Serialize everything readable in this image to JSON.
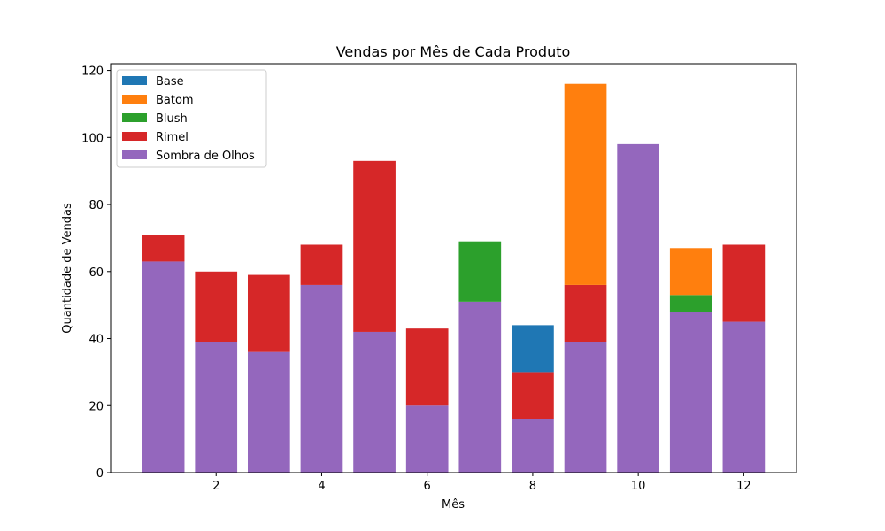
{
  "chart_data": {
    "type": "bar",
    "stacked": true,
    "title": "Vendas por Mês de Cada Produto",
    "xlabel": "Mês",
    "ylabel": "Quantidade de Vendas",
    "x": [
      1,
      2,
      3,
      4,
      5,
      6,
      7,
      8,
      9,
      10,
      11,
      12
    ],
    "xticks": [
      2,
      4,
      6,
      8,
      10,
      12
    ],
    "yticks": [
      0,
      20,
      40,
      60,
      80,
      100,
      120
    ],
    "ylim": [
      0,
      122
    ],
    "xlim": [
      0,
      13
    ],
    "grid": false,
    "legend_position": "top-left",
    "series": [
      {
        "name": "Sombra de Olhos",
        "color": "#9467bd",
        "values": [
          63,
          39,
          36,
          56,
          42,
          20,
          51,
          16,
          39,
          98,
          48,
          45
        ]
      },
      {
        "name": "Rimel",
        "color": "#d62728",
        "values": [
          8,
          21,
          23,
          12,
          51,
          23,
          0,
          14,
          17,
          0,
          0,
          23
        ]
      },
      {
        "name": "Blush",
        "color": "#2ca02c",
        "values": [
          0,
          0,
          0,
          0,
          0,
          0,
          18,
          0,
          0,
          0,
          5,
          0
        ]
      },
      {
        "name": "Batom",
        "color": "#ff7f0e",
        "values": [
          0,
          0,
          0,
          0,
          0,
          0,
          0,
          0,
          60,
          0,
          14,
          0
        ]
      },
      {
        "name": "Base",
        "color": "#1f77b4",
        "values": [
          0,
          0,
          0,
          0,
          0,
          0,
          0,
          14,
          0,
          0,
          0,
          0
        ]
      }
    ],
    "legend_order": [
      "Base",
      "Batom",
      "Blush",
      "Rimel",
      "Sombra de Olhos"
    ]
  }
}
